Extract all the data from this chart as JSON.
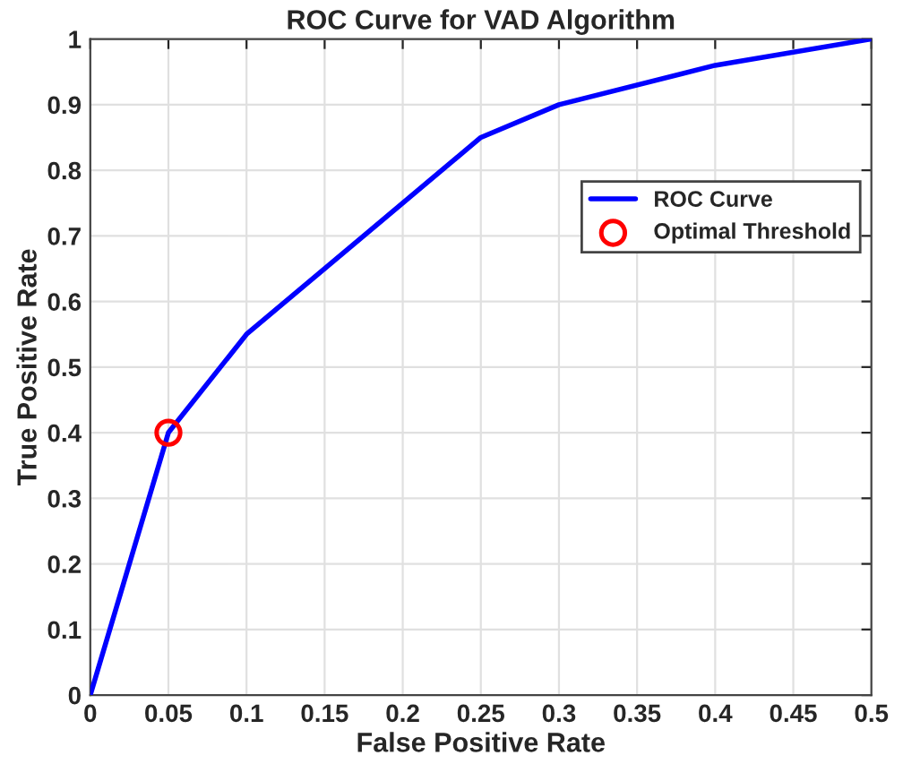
{
  "chart_data": {
    "type": "line",
    "title": "ROC Curve for VAD Algorithm",
    "xlabel": "False Positive Rate",
    "ylabel": "True Positive Rate",
    "series": [
      {
        "name": "ROC Curve",
        "color": "#0000ff",
        "x": [
          0,
          0.05,
          0.1,
          0.25,
          0.3,
          0.4,
          0.5
        ],
        "values": [
          0,
          0.4,
          0.55,
          0.85,
          0.9,
          0.96,
          1.0
        ],
        "marker": "none",
        "line_style": "solid"
      },
      {
        "name": "Optimal Threshold",
        "type": "scatter",
        "color": "#ff0000",
        "x": [
          0.05
        ],
        "values": [
          0.4
        ],
        "marker": "circle"
      }
    ],
    "xlim": [
      0,
      0.5
    ],
    "xticks": [
      0,
      0.05,
      0.1,
      0.15,
      0.2,
      0.25,
      0.3,
      0.35,
      0.4,
      0.45,
      0.5
    ],
    "ylim": [
      0,
      1
    ],
    "yticks": [
      0,
      0.1,
      0.2,
      0.3,
      0.4,
      0.5,
      0.6,
      0.7,
      0.8,
      0.9,
      1
    ],
    "grid": true,
    "legend": "top right"
  }
}
